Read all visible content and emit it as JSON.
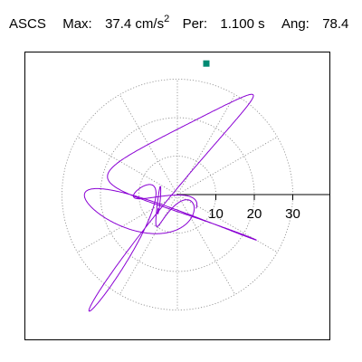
{
  "header": {
    "station": "ASCS",
    "max_label": "Max:",
    "max_value": "37.4 cm/s",
    "max_exponent": "2",
    "per_label": "Per:",
    "per_value": "1.100 s",
    "ang_label": "Ang:",
    "ang_value": "78.4"
  },
  "chart_data": {
    "type": "polar-hodogram",
    "title": "",
    "radial_ticks": [
      "10",
      "20",
      "30"
    ],
    "radial_tick_values": [
      10,
      20,
      30
    ],
    "rmax": 37.4,
    "angle_deg": 78.4,
    "grid": true,
    "colors": {
      "trace": "#8a00d4",
      "marker": "#008a73",
      "grid": "#888888",
      "axis": "#000000"
    }
  }
}
